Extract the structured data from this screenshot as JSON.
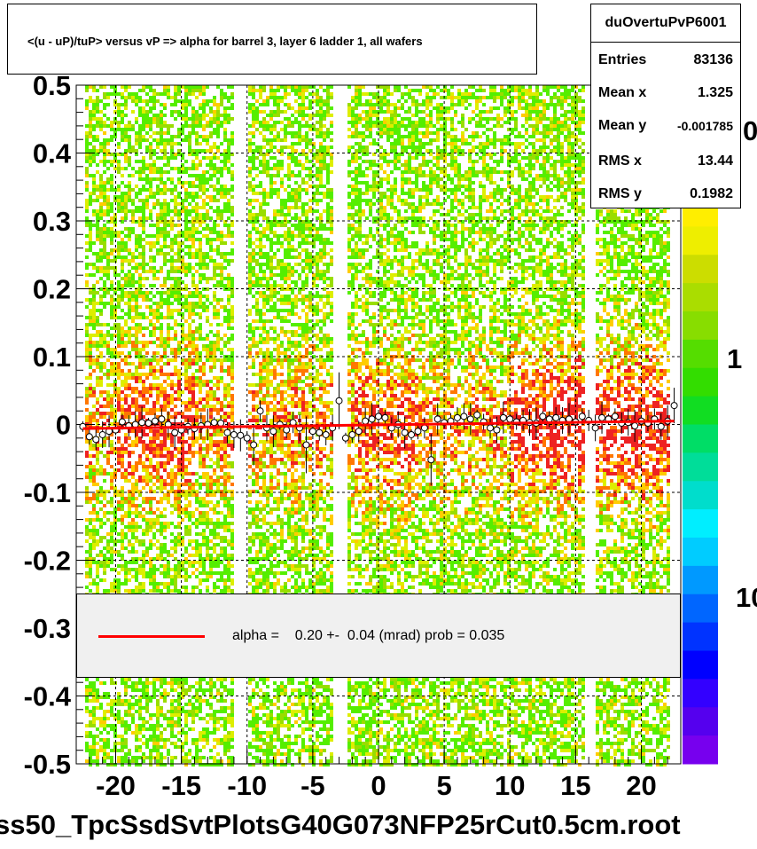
{
  "chart_data": {
    "type": "heatmap",
    "title": "<(u - uP)/tuP> versus   vP => alpha for barrel 3, layer 6 ladder 1, all wafers",
    "xlim": [
      -23,
      23
    ],
    "ylim": [
      -0.5,
      0.5
    ],
    "x_ticks": [
      "-20",
      "-15",
      "-10",
      "-5",
      "0",
      "5",
      "10",
      "15",
      "20"
    ],
    "y_ticks": [
      "0.5",
      "0.4",
      "0.3",
      "0.2",
      "0.1",
      "0",
      "-0.1",
      "-0.2",
      "-0.3",
      "-0.4",
      "-0.5"
    ],
    "palette_labels": [
      "1",
      "10"
    ],
    "palette_label_partial": "0",
    "grid": true,
    "profile_points": [
      {
        "x": -22.5,
        "y": -0.003
      },
      {
        "x": -22,
        "y": -0.018
      },
      {
        "x": -21.5,
        "y": -0.022
      },
      {
        "x": -21,
        "y": -0.015
      },
      {
        "x": -20.5,
        "y": -0.01
      },
      {
        "x": -20,
        "y": -0.008
      },
      {
        "x": -19.5,
        "y": 0.004
      },
      {
        "x": -19,
        "y": -0.002
      },
      {
        "x": -18.5,
        "y": 0.0
      },
      {
        "x": -18,
        "y": 0.003
      },
      {
        "x": -17.5,
        "y": 0.002
      },
      {
        "x": -17,
        "y": 0.005
      },
      {
        "x": -16.5,
        "y": 0.008
      },
      {
        "x": -16,
        "y": 0.0
      },
      {
        "x": -15.5,
        "y": -0.012
      },
      {
        "x": -15,
        "y": -0.008
      },
      {
        "x": -14.5,
        "y": -0.003
      },
      {
        "x": -14,
        "y": -0.006
      },
      {
        "x": -13.5,
        "y": -0.002
      },
      {
        "x": -13,
        "y": 0.0
      },
      {
        "x": -12.5,
        "y": 0.003
      },
      {
        "x": -12,
        "y": 0.002
      },
      {
        "x": -11.5,
        "y": -0.012
      },
      {
        "x": -11,
        "y": -0.015
      },
      {
        "x": -10.5,
        "y": -0.016
      },
      {
        "x": -10,
        "y": -0.02
      },
      {
        "x": -9.5,
        "y": -0.03
      },
      {
        "x": -9,
        "y": 0.02
      },
      {
        "x": -8.5,
        "y": -0.005
      },
      {
        "x": -8,
        "y": -0.01
      },
      {
        "x": -7.5,
        "y": 0.0
      },
      {
        "x": -7,
        "y": -0.008
      },
      {
        "x": -6.5,
        "y": 0.003
      },
      {
        "x": -6,
        "y": -0.005
      },
      {
        "x": -5.5,
        "y": -0.03
      },
      {
        "x": -5,
        "y": -0.01
      },
      {
        "x": -4.5,
        "y": -0.012
      },
      {
        "x": -4,
        "y": -0.015
      },
      {
        "x": -3.5,
        "y": -0.005
      },
      {
        "x": -3,
        "y": 0.035
      },
      {
        "x": -2.5,
        "y": -0.02
      },
      {
        "x": -2,
        "y": -0.015
      },
      {
        "x": -1.5,
        "y": -0.01
      },
      {
        "x": -1,
        "y": 0.005
      },
      {
        "x": -0.5,
        "y": 0.008
      },
      {
        "x": 0,
        "y": 0.012
      },
      {
        "x": 0.5,
        "y": 0.01
      },
      {
        "x": 1,
        "y": -0.005
      },
      {
        "x": 1.5,
        "y": 0.0
      },
      {
        "x": 2,
        "y": -0.012
      },
      {
        "x": 2.5,
        "y": -0.015
      },
      {
        "x": 3,
        "y": -0.01
      },
      {
        "x": 3.5,
        "y": -0.005
      },
      {
        "x": 4,
        "y": -0.052
      },
      {
        "x": 4.5,
        "y": 0.008
      },
      {
        "x": 5,
        "y": 0.003
      },
      {
        "x": 5.5,
        "y": 0.005
      },
      {
        "x": 6,
        "y": 0.01
      },
      {
        "x": 6.5,
        "y": 0.012
      },
      {
        "x": 7,
        "y": 0.008
      },
      {
        "x": 7.5,
        "y": 0.014
      },
      {
        "x": 8,
        "y": 0.004
      },
      {
        "x": 8.5,
        "y": -0.005
      },
      {
        "x": 9,
        "y": -0.008
      },
      {
        "x": 9.5,
        "y": 0.01
      },
      {
        "x": 10,
        "y": 0.008
      },
      {
        "x": 10.5,
        "y": 0.004
      },
      {
        "x": 11,
        "y": 0.006
      },
      {
        "x": 11.5,
        "y": 0.003
      },
      {
        "x": 12,
        "y": 0.002
      },
      {
        "x": 12.5,
        "y": 0.012
      },
      {
        "x": 13,
        "y": 0.008
      },
      {
        "x": 13.5,
        "y": 0.01
      },
      {
        "x": 14,
        "y": 0.006
      },
      {
        "x": 14.5,
        "y": 0.008
      },
      {
        "x": 15,
        "y": 0.004
      },
      {
        "x": 15.5,
        "y": 0.012
      },
      {
        "x": 16,
        "y": 0.006
      },
      {
        "x": 16.5,
        "y": -0.005
      },
      {
        "x": 17,
        "y": 0.01
      },
      {
        "x": 17.5,
        "y": 0.008
      },
      {
        "x": 18,
        "y": 0.012
      },
      {
        "x": 18.5,
        "y": 0.002
      },
      {
        "x": 19,
        "y": 0.003
      },
      {
        "x": 19.5,
        "y": -0.002
      },
      {
        "x": 20,
        "y": 0.005
      },
      {
        "x": 20.5,
        "y": 0.002
      },
      {
        "x": 21,
        "y": 0.008
      },
      {
        "x": 21.5,
        "y": -0.003
      },
      {
        "x": 22,
        "y": 0.005
      },
      {
        "x": 22.5,
        "y": 0.028
      }
    ],
    "fit_line": {
      "x": [
        -22.5,
        22.5
      ],
      "y": [
        -0.006,
        0.005
      ],
      "color": "#ff0000"
    },
    "colors": {
      "fit": "#ff0000",
      "grid": "#000000",
      "legend_bg": "#f0f0f0"
    }
  },
  "stats_box": {
    "name": "duOvertuPvP6001",
    "rows": [
      {
        "label": "Entries",
        "value": "83136"
      },
      {
        "label": "Mean x",
        "value": "1.325"
      },
      {
        "label": "Mean y",
        "value": "-0.001785"
      },
      {
        "label": "RMS x",
        "value": "13.44"
      },
      {
        "label": "RMS y",
        "value": "0.1982"
      }
    ]
  },
  "legend": {
    "text": "alpha =    0.20 +-  0.04 (mrad) prob = 0.035"
  },
  "footer": "ss50_TpcSsdSvtPlotsG40G073NFP25rCut0.5cm.root"
}
